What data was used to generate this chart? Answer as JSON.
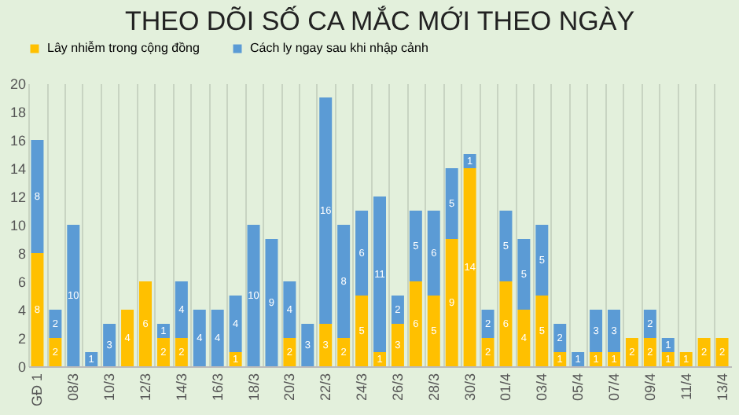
{
  "chart_data": {
    "type": "bar",
    "title": "THEO DÕI SỐ CA MẮC MỚI THEO NGÀY",
    "stacked": true,
    "categories": [
      "GĐ 1",
      null,
      "08/3",
      null,
      "10/3",
      null,
      "12/3",
      null,
      "14/3",
      null,
      "16/3",
      null,
      "18/3",
      null,
      "20/3",
      null,
      "22/3",
      null,
      "24/3",
      null,
      "26/3",
      null,
      "28/3",
      null,
      "30/3",
      null,
      "01/4",
      null,
      "03/4",
      null,
      "05/4",
      null,
      "07/4",
      null,
      "09/4",
      null,
      "11/4",
      null,
      "13/4"
    ],
    "series": [
      {
        "name": "Lây nhiễm trong cộng đồng",
        "color": "#ffc000",
        "values": [
          8,
          2,
          0,
          0,
          0,
          4,
          6,
          2,
          2,
          0,
          0,
          1,
          0,
          0,
          2,
          0,
          3,
          2,
          5,
          1,
          3,
          6,
          5,
          9,
          14,
          2,
          6,
          4,
          5,
          1,
          0,
          1,
          1,
          2,
          2,
          1,
          1,
          2,
          2
        ],
        "value_labels": [
          "8",
          "2",
          null,
          null,
          null,
          "4",
          "6",
          "2",
          "2",
          null,
          null,
          "1",
          null,
          null,
          "2",
          null,
          "3",
          "2",
          "5",
          "1",
          "3",
          "6",
          "5",
          "9",
          "14",
          "2",
          "6",
          "4",
          "5",
          "1",
          null,
          "1",
          "1",
          "2",
          "2",
          "1",
          "1",
          "2",
          "2"
        ]
      },
      {
        "name": "Cách ly ngay sau khi nhập cảnh",
        "color": "#5b9bd5",
        "values": [
          8,
          2,
          10,
          1,
          3,
          0,
          0,
          1,
          4,
          4,
          4,
          4,
          10,
          9,
          4,
          3,
          16,
          8,
          6,
          11,
          2,
          5,
          6,
          5,
          1,
          2,
          5,
          5,
          5,
          2,
          1,
          3,
          3,
          0,
          2,
          1,
          0,
          0,
          0
        ],
        "value_labels": [
          "8",
          "2",
          "10",
          "1",
          "3",
          null,
          null,
          "1",
          "4",
          "4",
          "4",
          "4",
          "10",
          "9",
          "4",
          "3",
          "16",
          "8",
          "6",
          "11",
          "2",
          "5",
          "6",
          "5",
          "1",
          "2",
          "5",
          "5",
          "5",
          "2",
          "1",
          "3",
          "3",
          null,
          "2",
          "1",
          null,
          null,
          null
        ]
      }
    ],
    "ylim": [
      0,
      20
    ],
    "yticks": [
      0,
      2,
      4,
      6,
      8,
      10,
      12,
      14,
      16,
      18,
      20
    ],
    "grid": "x",
    "legend": "top"
  }
}
